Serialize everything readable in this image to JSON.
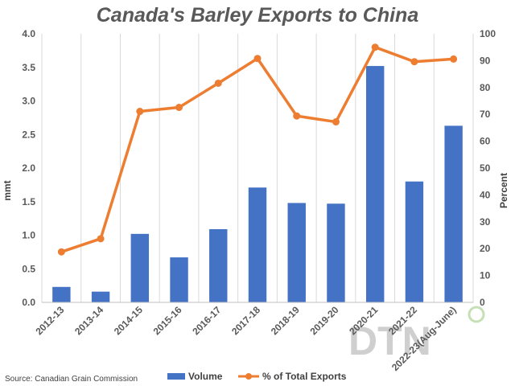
{
  "chart_data": {
    "type": "bar",
    "title": "Canada's Barley Exports to China",
    "categories": [
      "2012-13",
      "2013-14",
      "2014-15",
      "2015-16",
      "2016-17",
      "2017-18",
      "2018-19",
      "2019-20",
      "2020-21",
      "2021-22",
      "2022-23(Aug-June)"
    ],
    "series": [
      {
        "name": "Volume",
        "type": "bar",
        "axis": "left",
        "color": "#4472c4",
        "values": [
          0.23,
          0.16,
          1.02,
          0.67,
          1.09,
          1.71,
          1.48,
          1.47,
          3.52,
          1.8,
          2.63
        ]
      },
      {
        "name": "% of Total Exports",
        "type": "line",
        "axis": "right",
        "color": "#ed7d31",
        "values": [
          18.8,
          23.7,
          71.1,
          72.6,
          81.6,
          90.8,
          69.4,
          67.2,
          95.0,
          89.6,
          90.6
        ]
      }
    ],
    "ylabel": "mmt",
    "y2label": "Percent",
    "ylim": [
      0,
      4.0
    ],
    "y2lim": [
      0,
      100
    ],
    "yticks": [
      "0.0",
      "0.5",
      "1.0",
      "1.5",
      "2.0",
      "2.5",
      "3.0",
      "3.5",
      "4.0"
    ],
    "y2ticks": [
      "0",
      "10",
      "20",
      "30",
      "40",
      "50",
      "60",
      "70",
      "80",
      "90",
      "100"
    ],
    "grid": "vertical",
    "legend": "bottom",
    "source": "Source: Canadian Grain Commission",
    "watermark": "DTN"
  }
}
